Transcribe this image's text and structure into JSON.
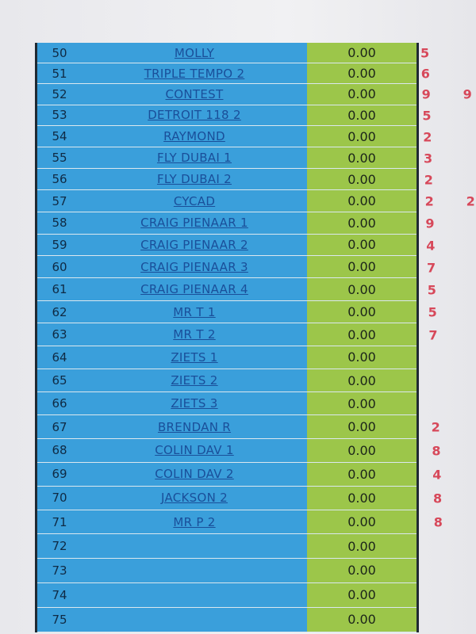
{
  "colors": {
    "blue": "#3a9fdb",
    "green": "#9cc64a",
    "red": "#d7485a"
  },
  "rows": [
    {
      "num": "50",
      "name": "MOLLY",
      "value": "0.00",
      "mark": "5",
      "mark2": ""
    },
    {
      "num": "51",
      "name": "TRIPLE TEMPO  2",
      "value": "0.00",
      "mark": "6",
      "mark2": ""
    },
    {
      "num": "52",
      "name": "CONTEST",
      "value": "0.00",
      "mark": "9",
      "mark2": "9"
    },
    {
      "num": "53",
      "name": "DETROIT 118 2",
      "value": "0.00",
      "mark": "5",
      "mark2": ""
    },
    {
      "num": "54",
      "name": "RAYMOND",
      "value": "0.00",
      "mark": "2",
      "mark2": ""
    },
    {
      "num": "55",
      "name": "FLY DUBAI 1",
      "value": "0.00",
      "mark": "3",
      "mark2": ""
    },
    {
      "num": "56",
      "name": "FLY DUBAI 2",
      "value": "0.00",
      "mark": "2",
      "mark2": ""
    },
    {
      "num": "57",
      "name": "CYCAD",
      "value": "0.00",
      "mark": "2",
      "mark2": "2"
    },
    {
      "num": "58",
      "name": "CRAIG PIENAAR 1",
      "value": "0.00",
      "mark": "9",
      "mark2": ""
    },
    {
      "num": "59",
      "name": "CRAIG PIENAAR 2",
      "value": "0.00",
      "mark": "4",
      "mark2": ""
    },
    {
      "num": "60",
      "name": "CRAIG PIENAAR 3",
      "value": "0.00",
      "mark": "7",
      "mark2": ""
    },
    {
      "num": "61",
      "name": "CRAIG PIENAAR 4",
      "value": "0.00",
      "mark": "5",
      "mark2": ""
    },
    {
      "num": "62",
      "name": "MR T  1",
      "value": "0.00",
      "mark": "5",
      "mark2": ""
    },
    {
      "num": "63",
      "name": "MR T  2",
      "value": "0.00",
      "mark": "7",
      "mark2": ""
    },
    {
      "num": "64",
      "name": "ZIETS 1",
      "value": "0.00",
      "mark": "",
      "mark2": ""
    },
    {
      "num": "65",
      "name": "ZIETS 2",
      "value": "0.00",
      "mark": "",
      "mark2": ""
    },
    {
      "num": "66",
      "name": "ZIETS 3",
      "value": "0.00",
      "mark": "",
      "mark2": ""
    },
    {
      "num": "67",
      "name": "BRENDAN R",
      "value": "0.00",
      "mark": "2",
      "mark2": ""
    },
    {
      "num": "68",
      "name": "COLIN DAV 1",
      "value": "0.00",
      "mark": "8",
      "mark2": ""
    },
    {
      "num": "69",
      "name": "COLIN DAV 2",
      "value": "0.00",
      "mark": "4",
      "mark2": ""
    },
    {
      "num": "70",
      "name": "JACKSON 2",
      "value": "0.00",
      "mark": "8",
      "mark2": ""
    },
    {
      "num": "71",
      "name": "MR P 2",
      "value": "0.00",
      "mark": "8",
      "mark2": ""
    },
    {
      "num": "72",
      "name": "",
      "value": "0.00",
      "mark": "",
      "mark2": ""
    },
    {
      "num": "73",
      "name": "",
      "value": "0.00",
      "mark": "",
      "mark2": ""
    },
    {
      "num": "74",
      "name": "",
      "value": "0.00",
      "mark": "",
      "mark2": ""
    },
    {
      "num": "75",
      "name": "",
      "value": "0.00",
      "mark": "",
      "mark2": ""
    }
  ]
}
